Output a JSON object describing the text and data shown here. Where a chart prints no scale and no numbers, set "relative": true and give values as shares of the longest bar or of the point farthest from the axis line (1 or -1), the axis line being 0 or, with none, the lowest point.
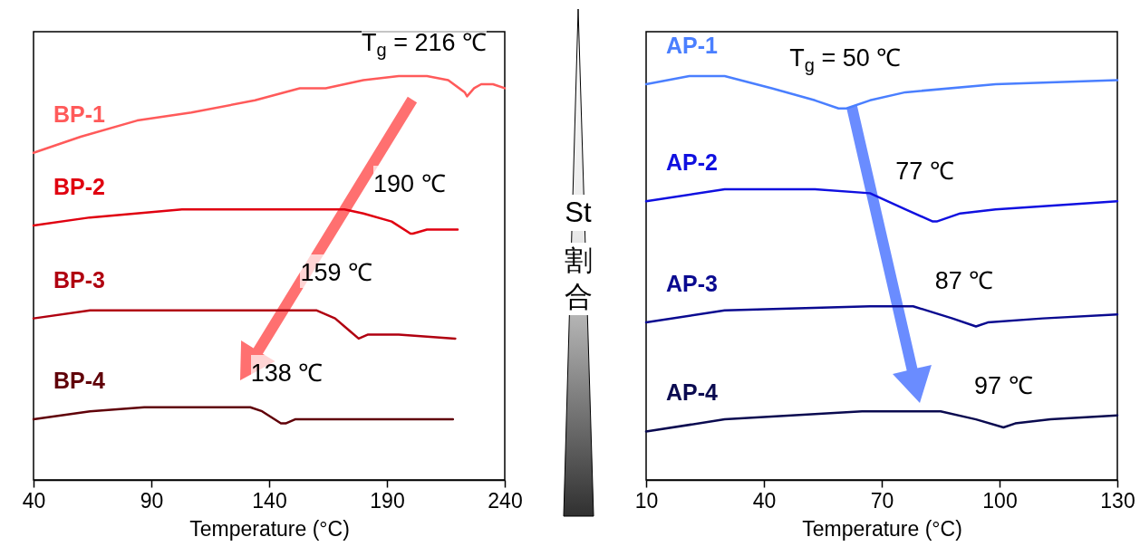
{
  "chart_data": [
    {
      "type": "line",
      "relative": true,
      "xlabel": "Temperature (°C)",
      "xlim": [
        40,
        240
      ],
      "xticks": [
        40,
        90,
        140,
        190,
        240
      ],
      "series": [
        {
          "name": "BP-1",
          "color": "#ff5a5a",
          "x": [
            40,
            60,
            84,
            107,
            134,
            153,
            164,
            180,
            195,
            207,
            216,
            223,
            224,
            227,
            230,
            235,
            240
          ],
          "values": [
            0.81,
            0.85,
            0.89,
            0.91,
            0.94,
            0.97,
            0.97,
            0.99,
            1.0,
            1.0,
            0.99,
            0.96,
            0.95,
            0.97,
            0.98,
            0.98,
            0.97
          ]
        },
        {
          "name": "BP-2",
          "color": "#e00010",
          "x": [
            40,
            64,
            103,
            141,
            172,
            180,
            192,
            200,
            201,
            207,
            220
          ],
          "values": [
            0.63,
            0.65,
            0.67,
            0.67,
            0.67,
            0.66,
            0.64,
            0.61,
            0.61,
            0.62,
            0.62
          ]
        },
        {
          "name": "BP-3",
          "color": "#b00010",
          "x": [
            40,
            64,
            83,
            141,
            160,
            168,
            174,
            178,
            182,
            195,
            219
          ],
          "values": [
            0.4,
            0.42,
            0.42,
            0.42,
            0.42,
            0.4,
            0.37,
            0.35,
            0.36,
            0.36,
            0.35
          ]
        },
        {
          "name": "BP-4",
          "color": "#600008",
          "x": [
            40,
            64,
            87,
            132,
            137,
            145,
            147,
            151,
            160,
            199,
            218
          ],
          "values": [
            0.15,
            0.17,
            0.18,
            0.18,
            0.17,
            0.14,
            0.14,
            0.15,
            0.15,
            0.15,
            0.15
          ]
        }
      ],
      "annotations": [
        {
          "text": "T$_{g}$ = 216 ℃",
          "x": 216,
          "y": 0.99
        },
        {
          "text": "190 ℃",
          "x": 190,
          "y": 0.64
        },
        {
          "text": "159 ℃",
          "x": 159,
          "y": 0.42
        },
        {
          "text": "138 ℃",
          "x": 138,
          "y": 0.17
        }
      ]
    },
    {
      "type": "other",
      "annotations": [
        "St",
        "割合"
      ]
    },
    {
      "type": "line",
      "relative": true,
      "xlabel": "Temperature (°C)",
      "xlim": [
        10,
        130
      ],
      "xticks": [
        10,
        40,
        70,
        100,
        130
      ],
      "series": [
        {
          "name": "AP-1",
          "color": "#4a7fff",
          "x": [
            10,
            21,
            30,
            42,
            53,
            59,
            61,
            67,
            76,
            99,
            130
          ],
          "values": [
            0.98,
            1.0,
            1.0,
            0.97,
            0.94,
            0.92,
            0.92,
            0.94,
            0.96,
            0.98,
            0.99
          ]
        },
        {
          "name": "AP-2",
          "color": "#1010e0",
          "x": [
            10,
            30,
            53,
            67,
            76,
            83,
            84,
            90,
            99,
            130
          ],
          "values": [
            0.69,
            0.72,
            0.72,
            0.71,
            0.67,
            0.64,
            0.64,
            0.66,
            0.67,
            0.69
          ]
        },
        {
          "name": "AP-3",
          "color": "#0a0a90",
          "x": [
            10,
            30,
            67,
            78,
            88,
            94,
            97,
            111,
            130
          ],
          "values": [
            0.39,
            0.42,
            0.43,
            0.43,
            0.4,
            0.38,
            0.39,
            0.4,
            0.41
          ]
        },
        {
          "name": "AP-4",
          "color": "#0a0a50",
          "x": [
            10,
            30,
            65,
            85,
            94,
            101,
            104,
            113,
            130
          ],
          "values": [
            0.12,
            0.15,
            0.17,
            0.17,
            0.15,
            0.13,
            0.14,
            0.15,
            0.16
          ]
        }
      ],
      "annotations": [
        {
          "text": "T$_{g}$ = 50 ℃",
          "x": 50,
          "y": 0.95
        },
        {
          "text": "77 ℃",
          "x": 77,
          "y": 0.67
        },
        {
          "text": "87 ℃",
          "x": 87,
          "y": 0.4
        },
        {
          "text": "97 ℃",
          "x": 97,
          "y": 0.14
        }
      ]
    }
  ]
}
